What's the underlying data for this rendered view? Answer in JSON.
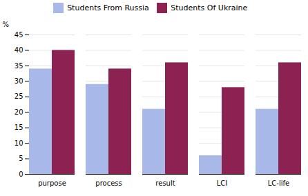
{
  "chart_data": {
    "type": "bar",
    "categories": [
      "purpose",
      "process",
      "result",
      "LCI",
      "LC-life"
    ],
    "series": [
      {
        "name": "Students From Russia",
        "color": "#a8b8e8",
        "values": [
          34,
          29,
          21,
          6,
          21
        ]
      },
      {
        "name": "Students Of Ukraine",
        "color": "#8b2252",
        "values": [
          40,
          34,
          36,
          28,
          36
        ]
      }
    ],
    "ylabel": "%",
    "ylim": [
      0,
      45
    ],
    "yticks": [
      0,
      5,
      10,
      15,
      20,
      25,
      30,
      35,
      40,
      45
    ],
    "grid": true,
    "legend": "top"
  }
}
